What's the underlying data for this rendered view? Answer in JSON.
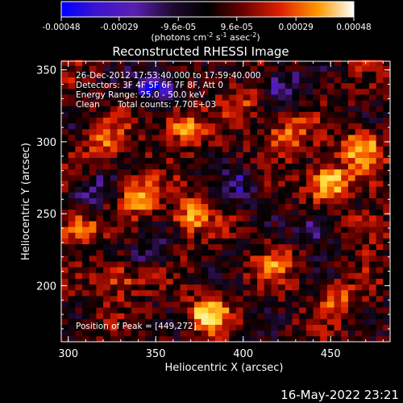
{
  "chart_data": {
    "type": "heatmap",
    "title": "Reconstructed RHESSI Image",
    "xlabel": "Heliocentric X (arcsec)",
    "ylabel": "Heliocentric Y (arcsec)",
    "xlim": [
      296,
      484
    ],
    "ylim": [
      161,
      356
    ],
    "x_ticks": [
      "300",
      "350",
      "400",
      "450"
    ],
    "x_tick_values": [
      300,
      350,
      400,
      450
    ],
    "y_ticks": [
      "200",
      "250",
      "300",
      "350"
    ],
    "y_tick_values": [
      200,
      250,
      300,
      350
    ],
    "colorbar": {
      "tick_labels": [
        "-0.00048",
        "-0.00029",
        "-9.6e-05",
        "9.6e-05",
        "0.00029",
        "0.00048"
      ],
      "tick_values": [
        -0.00048,
        -0.00029,
        -9.6e-05,
        9.6e-05,
        0.00029,
        0.00048
      ],
      "range": [
        -0.00048,
        0.00048
      ],
      "units_label": "(photons cm",
      "units_sup1": "-2",
      "units_mid": " s",
      "units_sup2": "-1",
      "units_end": " asec",
      "units_sup3": "-2",
      "units_close": ")"
    },
    "annotations": {
      "time_range": "26-Dec-2012 17:53:40.000 to 17:59:40.000",
      "detectors": "Detectors: 3F 4F 5F 6F 7F 8F, Att 0",
      "energy_range": "Energy Range: 25.0 - 50.0 keV",
      "method": "Clean",
      "total_counts": "Total counts: 7.70E+03",
      "peak_position": "Position of Peak = [449,272]"
    },
    "peak": [
      449,
      272
    ],
    "colormap": [
      "#0000ff",
      "#5b1fb0",
      "#200a30",
      "#000000",
      "#6a0000",
      "#e02000",
      "#ff8a00",
      "#ffe040",
      "#ffffff"
    ],
    "hotspots": [
      {
        "x": 449,
        "y": 272,
        "level": 1.0
      },
      {
        "x": 468,
        "y": 295,
        "level": 0.85
      },
      {
        "x": 425,
        "y": 305,
        "level": 0.6
      },
      {
        "x": 322,
        "y": 300,
        "level": 0.55
      },
      {
        "x": 340,
        "y": 262,
        "level": 0.75
      },
      {
        "x": 370,
        "y": 250,
        "level": 0.7
      },
      {
        "x": 305,
        "y": 240,
        "level": 0.65
      },
      {
        "x": 365,
        "y": 310,
        "level": 0.7
      },
      {
        "x": 380,
        "y": 180,
        "level": 0.85
      },
      {
        "x": 330,
        "y": 205,
        "level": 0.55
      },
      {
        "x": 420,
        "y": 215,
        "level": 0.5
      },
      {
        "x": 455,
        "y": 190,
        "level": 0.45
      },
      {
        "x": 400,
        "y": 330,
        "level": 0.4
      },
      {
        "x": 470,
        "y": 240,
        "level": 0.45
      }
    ],
    "coldspots": [
      {
        "x": 350,
        "y": 340,
        "level": -0.8
      },
      {
        "x": 420,
        "y": 340,
        "level": -0.6
      },
      {
        "x": 440,
        "y": 240,
        "level": -0.55
      },
      {
        "x": 315,
        "y": 265,
        "level": -0.5
      },
      {
        "x": 400,
        "y": 270,
        "level": -0.45
      },
      {
        "x": 345,
        "y": 225,
        "level": -0.4
      }
    ]
  },
  "footer": {
    "date": "16-May-2022 23:21"
  }
}
